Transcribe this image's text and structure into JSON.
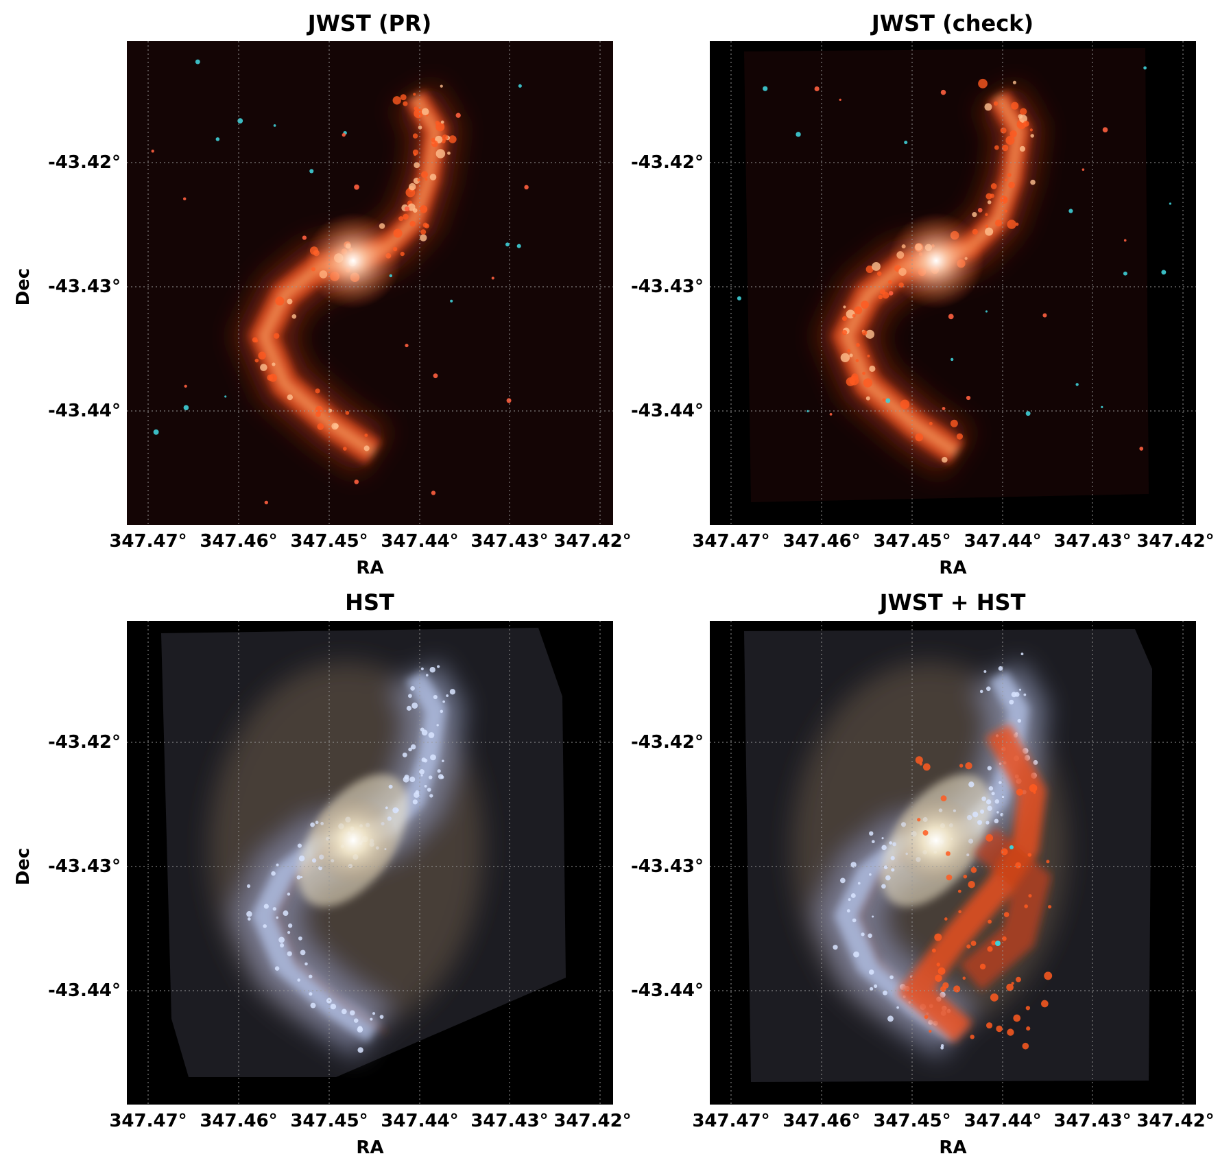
{
  "panels": [
    {
      "title": "JWST (PR)",
      "style": "jwst"
    },
    {
      "title": "JWST (check)",
      "style": "jwst-check"
    },
    {
      "title": "HST",
      "style": "hst"
    },
    {
      "title": "JWST + HST",
      "style": "combo"
    }
  ],
  "axes": {
    "xlabel": "RA",
    "ylabel": "Dec",
    "xticks": [
      "347.47°",
      "347.46°",
      "347.45°",
      "347.44°",
      "347.43°",
      "347.42°"
    ],
    "yticks": [
      "-43.42°",
      "-43.43°",
      "-43.44°"
    ],
    "grid": true
  },
  "colors": {
    "jwst_arm": "#e8501c",
    "jwst_glow": "#ffb070",
    "jwst_star": "#3fd0d8",
    "hst_arm": "#b8c8ee",
    "hst_core": "#f3e7c8",
    "hst_dust": "#7a3a20",
    "background": "#000000",
    "grid": "#9a9a9a"
  }
}
